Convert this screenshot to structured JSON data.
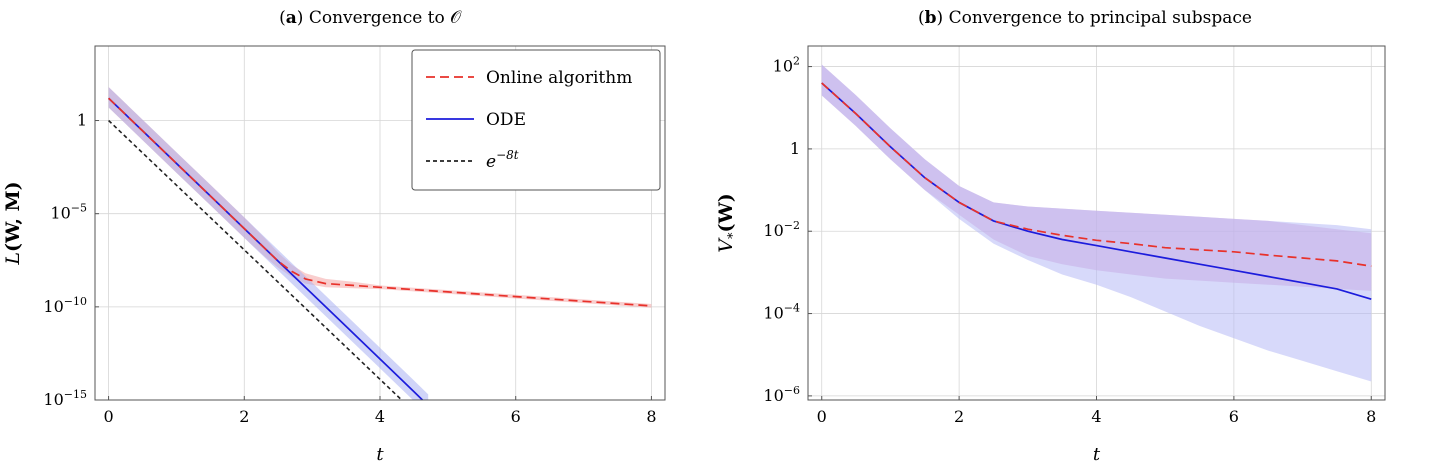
{
  "chart_data": [
    {
      "type": "line",
      "panel": "a",
      "title_tag": "a",
      "title": "Convergence to 𝒪",
      "xlabel": "t",
      "ylabel_main": "L",
      "ylabel_args": "(W, M)",
      "xlim": [
        -0.2,
        8.2
      ],
      "ylim_log10": [
        -15,
        4
      ],
      "x_ticks": [
        0,
        2,
        4,
        6,
        8
      ],
      "x_tick_labels": [
        "0",
        "2",
        "4",
        "6",
        "8"
      ],
      "y_ticks": [
        {
          "exp": 0,
          "base": "1",
          "sup": ""
        },
        {
          "exp": -5,
          "base": "10",
          "sup": "−5"
        },
        {
          "exp": -10,
          "base": "10",
          "sup": "−10"
        },
        {
          "exp": -15,
          "base": "10",
          "sup": "−15"
        }
      ],
      "legend": {
        "position": "top-right",
        "entries": [
          {
            "label": "Online algorithm",
            "style": "dashed",
            "color": "#e8312a"
          },
          {
            "label": "ODE",
            "style": "solid",
            "color": "#1c1cdc"
          },
          {
            "label_base": "e",
            "label_sup": "−8t",
            "style": "dotted",
            "color": "#222222"
          }
        ]
      },
      "series": [
        {
          "name": "Online algorithm",
          "style": "dashed",
          "color": "#e8312a",
          "x": [
            0,
            0.5,
            1,
            1.5,
            2,
            2.3,
            2.5,
            2.7,
            2.9,
            3.2,
            3.6,
            4,
            5,
            6,
            7,
            8
          ],
          "log10_y": [
            1.2,
            -0.55,
            -2.3,
            -4.05,
            -5.8,
            -6.85,
            -7.55,
            -8.1,
            -8.5,
            -8.75,
            -8.85,
            -8.95,
            -9.2,
            -9.45,
            -9.7,
            -9.95
          ],
          "band_log10_lower": [
            0.7,
            -1.05,
            -2.8,
            -4.55,
            -6.3,
            -7.3,
            -7.9,
            -8.4,
            -8.75,
            -8.95,
            -9.0,
            -9.05,
            -9.3,
            -9.55,
            -9.8,
            -10.05
          ],
          "band_log10_upper": [
            1.8,
            0.05,
            -1.7,
            -3.45,
            -5.2,
            -6.3,
            -7.1,
            -7.75,
            -8.2,
            -8.5,
            -8.65,
            -8.85,
            -9.1,
            -9.35,
            -9.6,
            -9.85
          ],
          "band_color": "#f4a6a6"
        },
        {
          "name": "ODE",
          "style": "solid",
          "color": "#1c1cdc",
          "x": [
            0,
            0.5,
            1,
            1.5,
            2,
            2.5,
            3,
            3.5,
            4,
            4.5,
            4.71
          ],
          "log10_y": [
            1.2,
            -0.55,
            -2.3,
            -4.05,
            -5.8,
            -7.55,
            -9.3,
            -11.05,
            -12.8,
            -14.55,
            -15.3
          ],
          "band_log10_lower": [
            0.7,
            -1.05,
            -2.8,
            -4.55,
            -6.3,
            -8.05,
            -9.8,
            -11.55,
            -13.3,
            -15.05,
            -15.3
          ],
          "band_log10_upper": [
            1.8,
            0.05,
            -1.7,
            -3.45,
            -5.2,
            -6.95,
            -8.7,
            -10.45,
            -12.2,
            -13.95,
            -14.7
          ],
          "band_color": "#aab0f2"
        },
        {
          "name": "e^{-8t}",
          "style": "dotted",
          "color": "#222222",
          "x": [
            0,
            4.42
          ],
          "log10_y": [
            0,
            -15.35
          ]
        }
      ]
    },
    {
      "type": "line",
      "panel": "b",
      "title_tag": "b",
      "title": "Convergence to principal subspace",
      "xlabel": "t",
      "ylabel_main": "V",
      "ylabel_sub": "*",
      "ylabel_args": "(W)",
      "xlim": [
        -0.2,
        8.2
      ],
      "ylim_log10": [
        -6.1,
        2.5
      ],
      "x_ticks": [
        0,
        2,
        4,
        6,
        8
      ],
      "x_tick_labels": [
        "0",
        "2",
        "4",
        "6",
        "8"
      ],
      "y_ticks": [
        {
          "exp": 2,
          "base": "10",
          "sup": "2"
        },
        {
          "exp": 0,
          "base": "1",
          "sup": ""
        },
        {
          "exp": -2,
          "base": "10",
          "sup": "−2"
        },
        {
          "exp": -4,
          "base": "10",
          "sup": "−4"
        },
        {
          "exp": -6,
          "base": "10",
          "sup": "−6"
        }
      ],
      "series": [
        {
          "name": "Online algorithm",
          "style": "dashed",
          "color": "#e8312a",
          "x": [
            0,
            0.5,
            1,
            1.5,
            2,
            2.5,
            3,
            3.5,
            4,
            4.5,
            5,
            5.5,
            6,
            6.5,
            7,
            7.5,
            8
          ],
          "log10_y": [
            1.6,
            0.85,
            0.05,
            -0.7,
            -1.3,
            -1.75,
            -1.95,
            -2.1,
            -2.22,
            -2.3,
            -2.4,
            -2.45,
            -2.5,
            -2.58,
            -2.65,
            -2.72,
            -2.85
          ],
          "band_log10_lower": [
            1.3,
            0.55,
            -0.25,
            -1.0,
            -1.6,
            -2.2,
            -2.6,
            -2.8,
            -2.95,
            -3.05,
            -3.15,
            -3.2,
            -3.25,
            -3.3,
            -3.35,
            -3.4,
            -3.45
          ],
          "band_log10_upper": [
            2.05,
            1.3,
            0.5,
            -0.25,
            -0.9,
            -1.3,
            -1.4,
            -1.45,
            -1.5,
            -1.55,
            -1.6,
            -1.65,
            -1.7,
            -1.75,
            -1.85,
            -1.95,
            -2.05
          ],
          "band_color": "#d9a1d4"
        },
        {
          "name": "ODE",
          "style": "solid",
          "color": "#1c1cdc",
          "x": [
            0,
            0.5,
            1,
            1.5,
            2,
            2.5,
            3,
            3.5,
            4,
            4.5,
            5,
            5.5,
            6,
            6.5,
            7,
            7.5,
            8
          ],
          "log10_y": [
            1.6,
            0.85,
            0.05,
            -0.7,
            -1.3,
            -1.75,
            -2.0,
            -2.2,
            -2.35,
            -2.5,
            -2.65,
            -2.8,
            -2.95,
            -3.1,
            -3.25,
            -3.4,
            -3.65
          ],
          "band_log10_lower": [
            1.3,
            0.55,
            -0.25,
            -1.0,
            -1.7,
            -2.3,
            -2.7,
            -3.05,
            -3.3,
            -3.6,
            -3.95,
            -4.3,
            -4.6,
            -4.9,
            -5.15,
            -5.4,
            -5.65
          ],
          "band_log10_upper": [
            2.05,
            1.3,
            0.5,
            -0.25,
            -0.9,
            -1.3,
            -1.4,
            -1.45,
            -1.5,
            -1.55,
            -1.6,
            -1.65,
            -1.7,
            -1.75,
            -1.8,
            -1.85,
            -1.95
          ],
          "band_color": "#b6b9f5"
        }
      ]
    }
  ]
}
